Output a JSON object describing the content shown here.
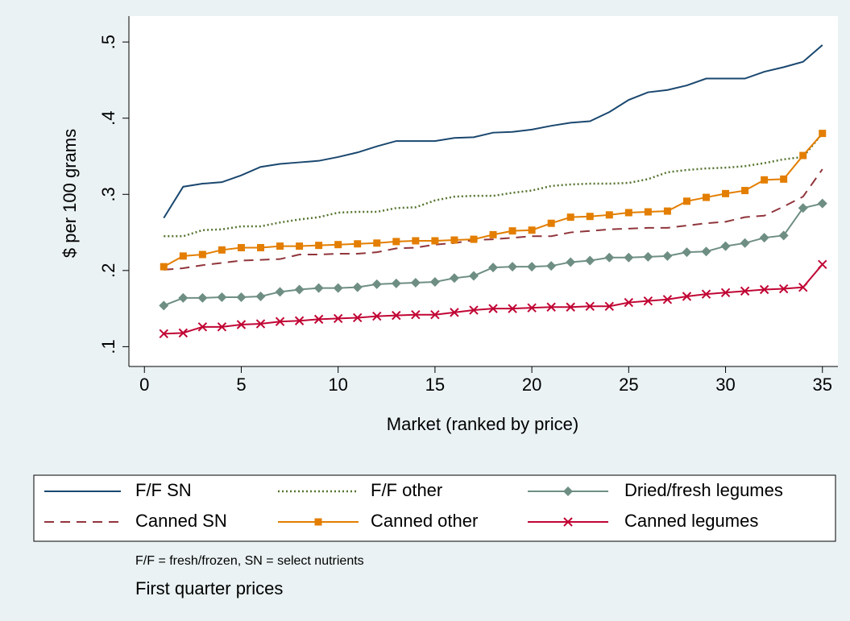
{
  "chart_data": {
    "type": "line",
    "xlabel": "Market (ranked by price)",
    "ylabel": "$ per 100 grams",
    "note": "F/F = fresh/frozen, SN = select nutrients",
    "caption": "First quarter prices",
    "x": [
      1,
      2,
      3,
      4,
      5,
      6,
      7,
      8,
      9,
      10,
      11,
      12,
      13,
      14,
      15,
      16,
      17,
      18,
      19,
      20,
      21,
      22,
      23,
      24,
      25,
      26,
      27,
      28,
      29,
      30,
      31,
      32,
      33,
      34,
      35
    ],
    "xlim": [
      -0.8,
      35.8
    ],
    "xticks": [
      0,
      5,
      10,
      15,
      20,
      25,
      30,
      35
    ],
    "ylim": [
      0.074,
      0.534
    ],
    "yticks": [
      {
        "value": 0.1,
        "label": ".1"
      },
      {
        "value": 0.2,
        "label": ".2"
      },
      {
        "value": 0.3,
        "label": ".3"
      },
      {
        "value": 0.4,
        "label": ".4"
      },
      {
        "value": 0.5,
        "label": ".5"
      }
    ],
    "grid": false,
    "legend_columns": 3,
    "series": [
      {
        "name": "F/F SN",
        "color": "#1a476f",
        "style": "solid",
        "marker": "none",
        "values": [
          0.269,
          0.31,
          0.314,
          0.316,
          0.325,
          0.336,
          0.34,
          0.342,
          0.344,
          0.349,
          0.355,
          0.363,
          0.37,
          0.37,
          0.37,
          0.374,
          0.375,
          0.381,
          0.382,
          0.385,
          0.39,
          0.394,
          0.396,
          0.408,
          0.424,
          0.434,
          0.437,
          0.443,
          0.452,
          0.452,
          0.452,
          0.461,
          0.467,
          0.474,
          0.496
        ]
      },
      {
        "name": "F/F other",
        "color": "#55752f",
        "style": "dotted",
        "marker": "none",
        "values": [
          0.245,
          0.245,
          0.253,
          0.254,
          0.258,
          0.258,
          0.263,
          0.267,
          0.27,
          0.276,
          0.277,
          0.277,
          0.282,
          0.283,
          0.292,
          0.297,
          0.298,
          0.298,
          0.302,
          0.305,
          0.311,
          0.313,
          0.314,
          0.314,
          0.315,
          0.32,
          0.329,
          0.332,
          0.334,
          0.335,
          0.337,
          0.341,
          0.346,
          0.349,
          0.38
        ]
      },
      {
        "name": "Dried/fresh legumes",
        "color": "#6e8e84",
        "style": "solid",
        "marker": "diamond",
        "values": [
          0.154,
          0.164,
          0.164,
          0.165,
          0.165,
          0.166,
          0.172,
          0.175,
          0.177,
          0.177,
          0.178,
          0.182,
          0.183,
          0.184,
          0.185,
          0.19,
          0.193,
          0.204,
          0.205,
          0.205,
          0.206,
          0.211,
          0.213,
          0.217,
          0.217,
          0.218,
          0.219,
          0.224,
          0.225,
          0.232,
          0.236,
          0.243,
          0.246,
          0.282,
          0.288
        ]
      },
      {
        "name": "Canned SN",
        "color": "#90353b",
        "style": "dashed",
        "marker": "none",
        "values": [
          0.201,
          0.203,
          0.207,
          0.21,
          0.213,
          0.214,
          0.215,
          0.221,
          0.221,
          0.222,
          0.222,
          0.224,
          0.229,
          0.23,
          0.234,
          0.236,
          0.24,
          0.241,
          0.243,
          0.245,
          0.245,
          0.25,
          0.252,
          0.254,
          0.255,
          0.256,
          0.256,
          0.259,
          0.262,
          0.264,
          0.27,
          0.272,
          0.284,
          0.297,
          0.333
        ]
      },
      {
        "name": "Canned other",
        "color": "#e37e00",
        "style": "solid",
        "marker": "square",
        "values": [
          0.205,
          0.219,
          0.221,
          0.227,
          0.23,
          0.23,
          0.232,
          0.232,
          0.233,
          0.234,
          0.235,
          0.236,
          0.238,
          0.239,
          0.239,
          0.24,
          0.241,
          0.247,
          0.252,
          0.253,
          0.262,
          0.27,
          0.271,
          0.273,
          0.276,
          0.277,
          0.278,
          0.291,
          0.296,
          0.301,
          0.305,
          0.319,
          0.32,
          0.351,
          0.38
        ]
      },
      {
        "name": "Canned legumes",
        "color": "#c10534",
        "style": "solid",
        "marker": "x",
        "values": [
          0.117,
          0.118,
          0.126,
          0.126,
          0.129,
          0.13,
          0.133,
          0.134,
          0.136,
          0.137,
          0.138,
          0.14,
          0.141,
          0.142,
          0.142,
          0.145,
          0.148,
          0.15,
          0.15,
          0.151,
          0.152,
          0.152,
          0.153,
          0.153,
          0.158,
          0.16,
          0.162,
          0.166,
          0.169,
          0.171,
          0.173,
          0.175,
          0.176,
          0.178,
          0.208
        ]
      }
    ]
  }
}
